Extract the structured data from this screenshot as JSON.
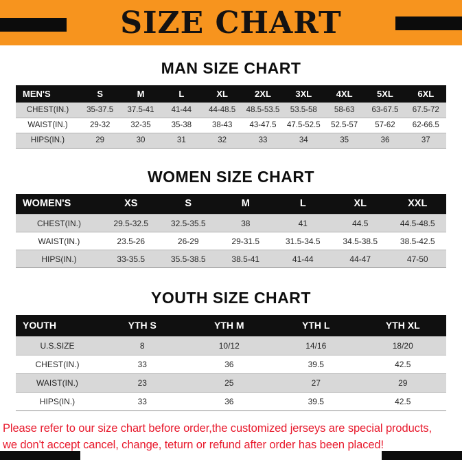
{
  "banner": {
    "title": "SIZE CHART"
  },
  "sections": [
    {
      "id": "men",
      "heading": "MAN SIZE CHART",
      "table": {
        "header": [
          "MEN'S",
          "S",
          "M",
          "L",
          "XL",
          "2XL",
          "3XL",
          "4XL",
          "5XL",
          "6XL"
        ],
        "rows": [
          [
            "CHEST(IN.)",
            "35-37.5",
            "37.5-41",
            "41-44",
            "44-48.5",
            "48.5-53.5",
            "53.5-58",
            "58-63",
            "63-67.5",
            "67.5-72"
          ],
          [
            "WAIST(IN.)",
            "29-32",
            "32-35",
            "35-38",
            "38-43",
            "43-47.5",
            "47.5-52.5",
            "52.5-57",
            "57-62",
            "62-66.5"
          ],
          [
            "HIPS(IN.)",
            "29",
            "30",
            "31",
            "32",
            "33",
            "34",
            "35",
            "36",
            "37"
          ]
        ]
      }
    },
    {
      "id": "women",
      "heading": "WOMEN SIZE CHART",
      "table": {
        "header": [
          "WOMEN'S",
          "XS",
          "S",
          "M",
          "L",
          "XL",
          "XXL"
        ],
        "rows": [
          [
            "CHEST(IN.)",
            "29.5-32.5",
            "32.5-35.5",
            "38",
            "41",
            "44.5",
            "44.5-48.5"
          ],
          [
            "WAIST(IN.)",
            "23.5-26",
            "26-29",
            "29-31.5",
            "31.5-34.5",
            "34.5-38.5",
            "38.5-42.5"
          ],
          [
            "HIPS(IN.)",
            "33-35.5",
            "35.5-38.5",
            "38.5-41",
            "41-44",
            "44-47",
            "47-50"
          ]
        ]
      }
    },
    {
      "id": "youth",
      "heading": "YOUTH SIZE CHART",
      "table": {
        "header": [
          "YOUTH",
          "YTH S",
          "YTH M",
          "YTH L",
          "YTH XL"
        ],
        "rows": [
          [
            "U.S.SIZE",
            "8",
            "10/12",
            "14/16",
            "18/20"
          ],
          [
            "CHEST(IN.)",
            "33",
            "36",
            "39.5",
            "42.5"
          ],
          [
            "WAIST(IN.)",
            "23",
            "25",
            "27",
            "29"
          ],
          [
            "HIPS(IN.)",
            "33",
            "36",
            "39.5",
            "42.5"
          ]
        ]
      }
    }
  ],
  "footer": {
    "lines": [
      "Please refer to our size chart before order,the customized jerseys are special products,",
      "we don't accept cancel, change, teturn or refund after order has been placed!"
    ]
  },
  "colors": {
    "banner_bg": "#F7941E",
    "header_bg": "#101010",
    "row_alt_bg": "#D8D8D8",
    "footer_text": "#E8192C"
  }
}
